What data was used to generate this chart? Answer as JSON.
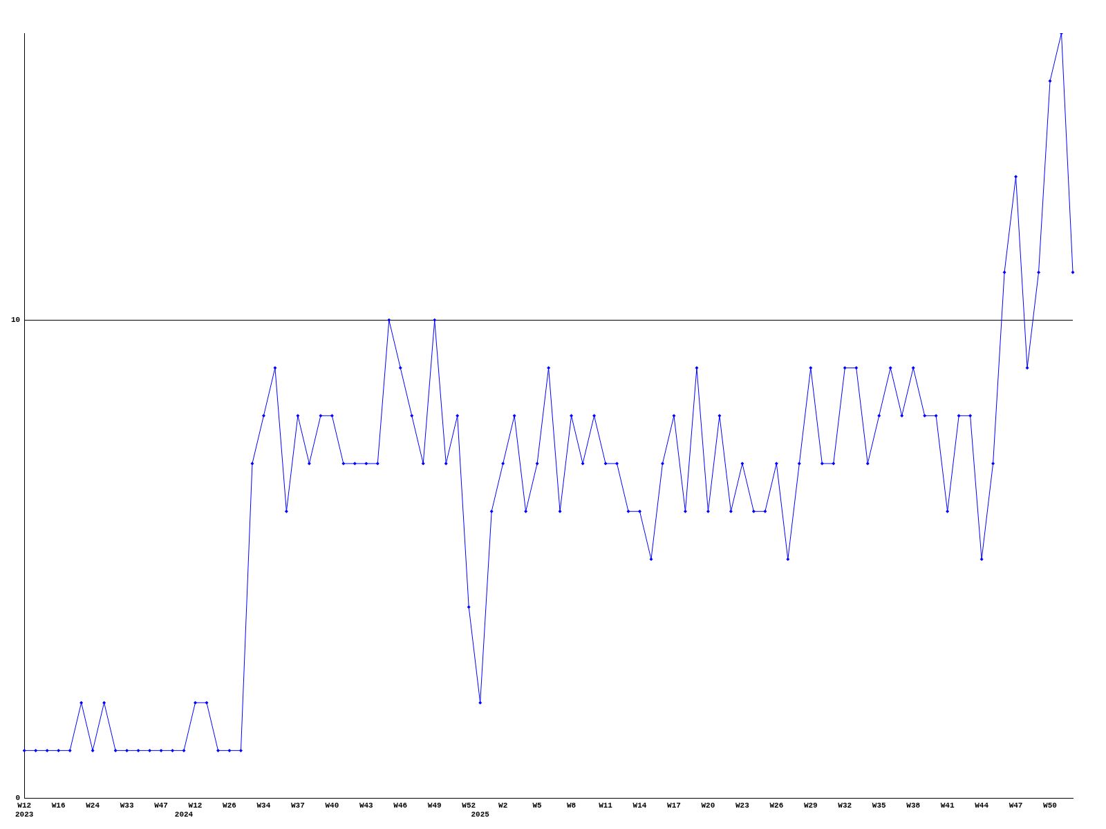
{
  "chart_data": {
    "type": "line",
    "categories": [
      "W12\n2023",
      null,
      null,
      "W16",
      null,
      null,
      "W24",
      null,
      null,
      "W33",
      null,
      null,
      "W47",
      null,
      "\n2024",
      "W12",
      null,
      null,
      "W26",
      null,
      null,
      "W34",
      null,
      null,
      "W37",
      null,
      null,
      "W40",
      null,
      null,
      "W43",
      null,
      null,
      "W46",
      null,
      null,
      "W49",
      null,
      null,
      "W52",
      "\n2025",
      null,
      "W2",
      null,
      null,
      "W5",
      null,
      null,
      "W8",
      null,
      null,
      "W11",
      null,
      null,
      "W14",
      null,
      null,
      "W17",
      null,
      null,
      "W20",
      null,
      null,
      "W23",
      null,
      null,
      "W26",
      null,
      null,
      "W29",
      null,
      null,
      "W32",
      null,
      null,
      "W35",
      null,
      null,
      "W38",
      null,
      null,
      "W41",
      null,
      null,
      "W44",
      null,
      null,
      "W47",
      null,
      null,
      "W50",
      null,
      null
    ],
    "series": [
      {
        "color": "#0000ff",
        "values": [
          1,
          1,
          1,
          1,
          1,
          2,
          1,
          2,
          1,
          1,
          1,
          1,
          1,
          1,
          1,
          2,
          2,
          1,
          1,
          1,
          7,
          8,
          9,
          6,
          8,
          7,
          8,
          8,
          7,
          7,
          7,
          7,
          10,
          9,
          8,
          7,
          10,
          7,
          8,
          4,
          2,
          6,
          7,
          8,
          6,
          7,
          9,
          6,
          8,
          7,
          8,
          7,
          7,
          6,
          6,
          5,
          7,
          8,
          6,
          9,
          6,
          8,
          6,
          7,
          6,
          6,
          7,
          5,
          7,
          9,
          7,
          7,
          9,
          9,
          7,
          8,
          9,
          8,
          9,
          8,
          8,
          6,
          8,
          8,
          5,
          7,
          11,
          13,
          9,
          11,
          15,
          16,
          11
        ]
      }
    ],
    "ylim": [
      0,
      16
    ],
    "yticks": [
      0,
      10
    ],
    "grid": "y",
    "legend": false,
    "marker": "diamond",
    "line_style": "solid"
  }
}
